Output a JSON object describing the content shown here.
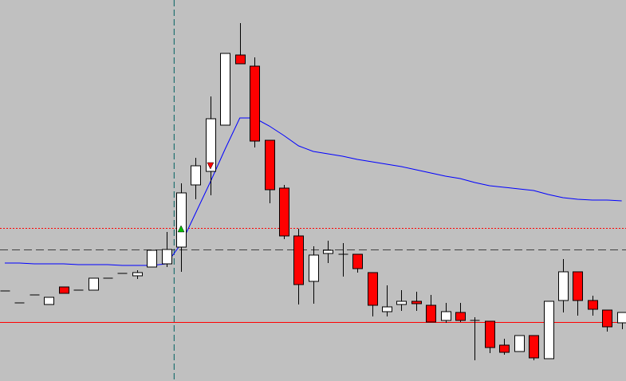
{
  "chart_data": {
    "type": "candlestick",
    "ylim": [
      0,
      478
    ],
    "background": "#c0c0c0",
    "bull_color": "#ffffff",
    "bear_color": "#ff0000",
    "wick_color": "#000000",
    "open": [
      113,
      98,
      108,
      96,
      118,
      114,
      114,
      129,
      135,
      132,
      143,
      147,
      168,
      246,
      263,
      321,
      409,
      395,
      302,
      242,
      182,
      125,
      160,
      159,
      159,
      136,
      87,
      96,
      100,
      95,
      76,
      86,
      76,
      75,
      45,
      37,
      57,
      28,
      101,
      137,
      101,
      89,
      73
    ],
    "high": [
      113,
      98,
      108,
      105,
      118,
      114,
      129,
      129,
      135,
      139,
      164,
      187,
      248,
      280,
      357,
      411,
      449,
      406,
      302,
      246,
      191,
      169,
      176,
      173,
      159,
      136,
      120,
      114,
      112,
      108,
      98,
      98,
      80,
      75,
      53,
      57,
      57,
      100,
      153,
      137,
      107,
      89,
      86
    ],
    "low": [
      113,
      98,
      108,
      96,
      110,
      114,
      114,
      129,
      135,
      128,
      143,
      143,
      137,
      228,
      233,
      321,
      398,
      293,
      223,
      178,
      96,
      97,
      148,
      131,
      136,
      81,
      81,
      88,
      88,
      74,
      73,
      74,
      26,
      35,
      33,
      37,
      26,
      28,
      86,
      82,
      82,
      62,
      65
    ],
    "close": [
      113,
      98,
      108,
      105,
      110,
      114,
      129,
      129,
      135,
      136,
      164,
      165,
      236,
      270,
      329,
      411,
      398,
      301,
      240,
      182,
      121,
      158,
      164,
      159,
      141,
      95,
      93,
      100,
      97,
      74,
      87,
      76,
      76,
      42,
      36,
      57,
      29,
      100,
      137,
      101,
      90,
      68,
      86
    ],
    "ma": {
      "color": "#0000ff",
      "values": [
        148,
        148,
        147,
        147,
        147,
        146,
        146,
        146,
        145,
        145,
        145,
        147,
        172,
        211,
        250,
        291,
        330,
        330,
        320,
        308,
        295,
        288,
        285,
        282,
        278,
        275,
        272,
        269,
        265,
        261,
        257,
        254,
        249,
        245,
        243,
        241,
        239,
        234,
        230,
        228,
        227,
        227,
        226
      ]
    },
    "levels": [
      {
        "value": 192,
        "color": "#ff0000",
        "style": "dotted"
      },
      {
        "value": 165,
        "color": "#404040",
        "style": "dashed"
      },
      {
        "value": 74,
        "color": "#ff0000",
        "style": "solid"
      }
    ],
    "vline": {
      "index": 11.5,
      "color": "#006060"
    },
    "signals": [
      {
        "index": 12,
        "value": 191,
        "dir": "up",
        "color": "#00c000"
      },
      {
        "index": 14,
        "value": 270,
        "dir": "down",
        "color": "#ff0000"
      }
    ]
  }
}
